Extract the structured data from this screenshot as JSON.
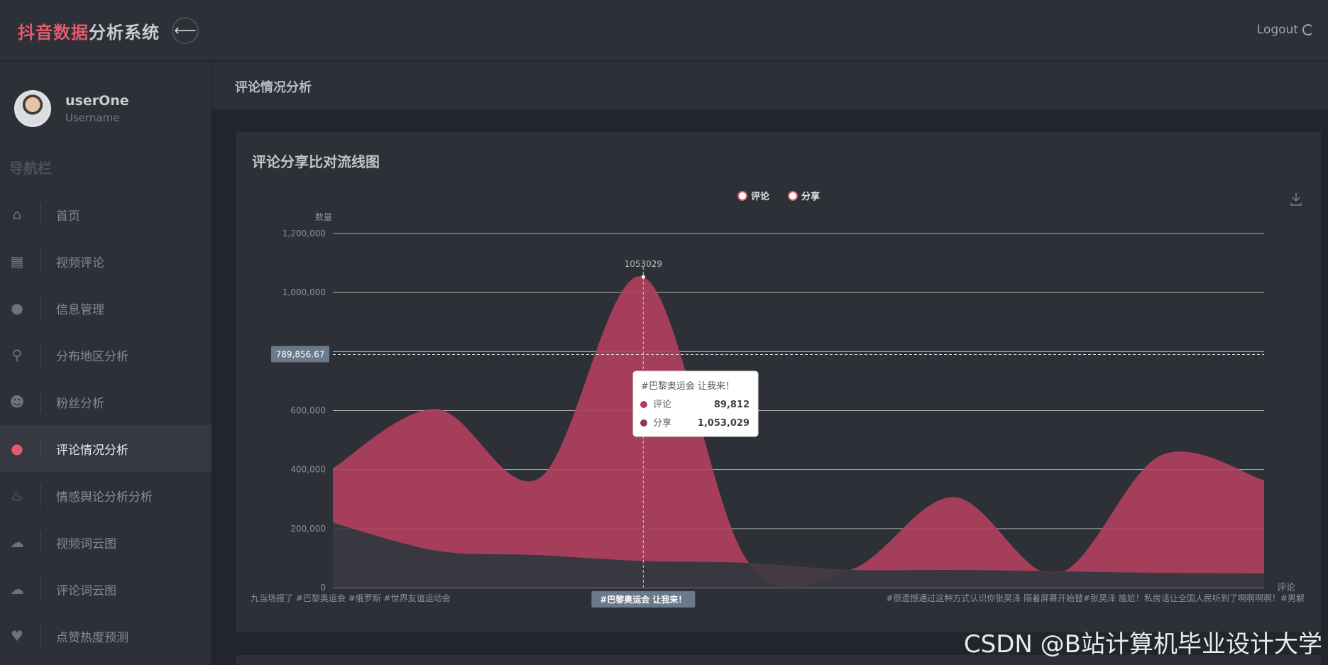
{
  "header": {
    "brand_highlight": "抖音数据",
    "brand_rest": "分析系统",
    "back_icon": "arrow-left-icon",
    "logout_label": "Logout"
  },
  "user": {
    "name": "userOne",
    "role": "Username"
  },
  "sidebar": {
    "title": "导航栏",
    "items": [
      {
        "label": "首页",
        "icon": "home-icon"
      },
      {
        "label": "视频评论",
        "icon": "grid-icon"
      },
      {
        "label": "信息管理",
        "icon": "user-icon"
      },
      {
        "label": "分布地区分析",
        "icon": "map-pin-icon"
      },
      {
        "label": "粉丝分析",
        "icon": "users-icon"
      },
      {
        "label": "评论情况分析",
        "icon": "comment-icon",
        "active": true
      },
      {
        "label": "情感舆论分析分析",
        "icon": "fire-icon"
      },
      {
        "label": "视频词云图",
        "icon": "cloud-download-icon"
      },
      {
        "label": "评论词云图",
        "icon": "cloud-upload-icon"
      },
      {
        "label": "点赞热度预测",
        "icon": "heart-icon"
      }
    ]
  },
  "page": {
    "title": "评论情况分析"
  },
  "panel": {
    "title": "评论分享比对流线图"
  },
  "tooltip": {
    "title": "#巴黎奥运会 让我来！",
    "rows": [
      {
        "name": "评论",
        "value": "89,812"
      },
      {
        "name": "分享",
        "value": "1,053,029"
      }
    ]
  },
  "watermark": "CSDN @B站计算机毕业设计大学",
  "colors": {
    "accent": "#e05c6c",
    "share": "#b0405e",
    "comment": "#3b3a41"
  },
  "chart_data": {
    "type": "area",
    "ylabel": "数量",
    "xlabel": "评论",
    "ylim": [
      0,
      1200000
    ],
    "yticks": [
      "0",
      "200,000",
      "400,000",
      "600,000",
      "1,000,000",
      "1,200,000"
    ],
    "legend": [
      "评论",
      "分享"
    ],
    "legend_position": "top-center",
    "average_label": "789,856.67",
    "average_value": 789856.67,
    "peak_label": "1053029",
    "axis_pointer_label": "#巴黎奥运会 让我来！",
    "x_label_left": "九当场报了 #巴黎奥运会 #俄罗斯 #世界友谊运动会",
    "x_label_right": "#很遗憾通过这种方式认识你张昊泽 隔着屏幕开始替#张昊泽 尴尬！私房话让全国人民听到了啊啊啊啊！#男解",
    "x_count": 10,
    "hover_index": 3,
    "series": [
      {
        "name": "分享",
        "values": [
          405000,
          605000,
          372000,
          1053029,
          94000,
          60000,
          307000,
          46000,
          448000,
          364000
        ]
      },
      {
        "name": "评论",
        "values": [
          220000,
          125000,
          110000,
          89812,
          84000,
          60000,
          60000,
          55000,
          50000,
          48000
        ]
      }
    ]
  }
}
